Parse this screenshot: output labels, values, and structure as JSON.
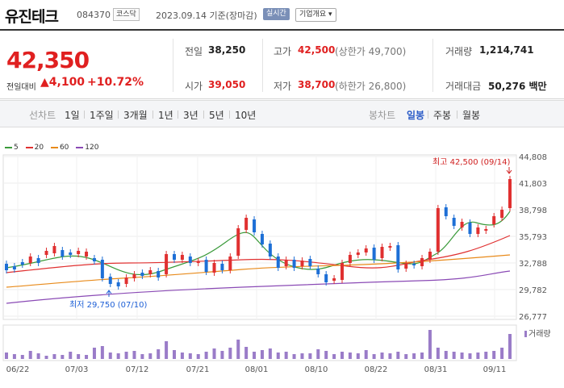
{
  "header": {
    "name": "유진테크",
    "code": "084370",
    "market": "코스닥",
    "date": "2023.09.14 기준(장마감)",
    "live": "실시간",
    "info_button": "기업개요 ▾"
  },
  "quote": {
    "price": "42,350",
    "change_label": "전일대비",
    "change_value": "▲4,100",
    "change_pct": "+10.72%",
    "prev_label": "전일",
    "prev": "38,250",
    "open_label": "시가",
    "open": "39,050",
    "high_label": "고가",
    "high": "42,500",
    "upper_limit": "(상한가 49,700)",
    "low_label": "저가",
    "low": "38,700",
    "lower_limit": "(하한가 26,800)",
    "volume_label": "거래량",
    "volume": "1,214,741",
    "amount_label": "거래대금",
    "amount": "50,276 백만"
  },
  "tabs": {
    "line_label": "선차트",
    "line": [
      "1일",
      "1주일",
      "3개월",
      "1년",
      "3년",
      "5년",
      "10년"
    ],
    "candle_label": "봉차트",
    "candle": [
      "일봉",
      "주봉",
      "월봉"
    ],
    "candle_selected": "일봉"
  },
  "legend": [
    {
      "label": "5",
      "color": "#3a9a3a"
    },
    {
      "label": "20",
      "color": "#e03030"
    },
    {
      "label": "60",
      "color": "#e88a1a"
    },
    {
      "label": "120",
      "color": "#8a4ab5"
    }
  ],
  "chart_data": {
    "type": "candlestick",
    "y_ticks": [
      "44,808",
      "41,803",
      "38,798",
      "35,793",
      "32,788",
      "29,782",
      "26,777"
    ],
    "x_ticks": [
      "06/22",
      "07/03",
      "07/12",
      "07/21",
      "08/01",
      "08/10",
      "08/22",
      "08/31",
      "09/11"
    ],
    "high_annotation": "최고 42,500 (09/14)",
    "low_annotation": "최저 29,750 (07/10)",
    "volume_label": "거래량"
  }
}
